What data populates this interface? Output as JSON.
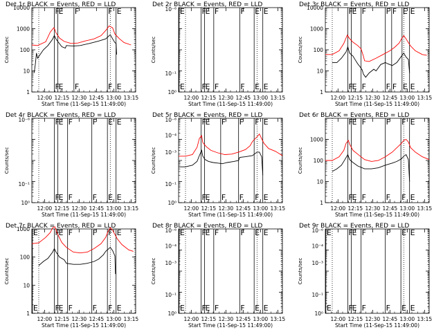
{
  "layout": "3x3 grid of detector light curves",
  "colors": {
    "events": "#000000",
    "lld": "#ff0000",
    "background": "#ffffff"
  },
  "chart_data": [
    {
      "type": "line",
      "title": "Det 1r BLACK = Events, RED = LLD",
      "xlabel": "Start Time (11-Sep-15 11:49:00)",
      "ylabel": "Counts/sec",
      "yscale": "log",
      "ylim_exp": [
        0,
        4
      ],
      "ytick_labels": [
        "1",
        "10",
        "100",
        "1000",
        "10000"
      ],
      "xticks": [
        "12:00",
        "12:15",
        "12:30",
        "12:45",
        "13:00",
        "13:15"
      ],
      "xlim_min": [
        0,
        90
      ],
      "has_data": true,
      "dotted_lines_min": [
        6,
        68,
        91
      ],
      "markers": [
        {
          "t": 19.5,
          "label": "F"
        },
        {
          "t": 22.5,
          "label": "E"
        },
        {
          "t": 36.5,
          "label": "F"
        },
        {
          "t": 65.5,
          "label": "F"
        },
        {
          "t": 73,
          "label": "E"
        }
      ],
      "series": [
        {
          "name": "LLD",
          "color": "red",
          "t": [
            0,
            5,
            12,
            16,
            19,
            20,
            21,
            24,
            28,
            34,
            40,
            46,
            54,
            60,
            64,
            67,
            70,
            72,
            76,
            80,
            86
          ],
          "val": [
            170,
            160,
            240,
            700,
            1100,
            900,
            630,
            360,
            250,
            200,
            210,
            260,
            330,
            470,
            820,
            1350,
            1100,
            560,
            330,
            220,
            170
          ]
        },
        {
          "name": "Events",
          "color": "black",
          "t": [
            2,
            3,
            4,
            5,
            10,
            14,
            18,
            19.5,
            21,
            23,
            26,
            29,
            30,
            36,
            42,
            50,
            58,
            64,
            68,
            70,
            72,
            73,
            73.5
          ],
          "val": [
            8,
            20,
            70,
            40,
            100,
            160,
            320,
            480,
            320,
            230,
            140,
            120,
            160,
            150,
            160,
            200,
            260,
            330,
            520,
            330,
            220,
            200,
            60
          ]
        }
      ]
    },
    {
      "type": "line",
      "title": "Det 2r BLACK = Events, RED = LLD",
      "xlabel": "Start Time (11-Sep-15 11:49:00)",
      "ylabel": "Counts/sec",
      "yscale": "log",
      "ylim_exp": [
        0,
        4
      ],
      "ytick_labels": [
        "10<sup>0</sup>",
        "10<sup>-1</sup>",
        "",
        "",
        "",
        "10<sup>-6</sup>"
      ],
      "ytick_text": [
        "10⁰",
        "10⁻¹",
        "",
        "",
        "",
        "10⁻⁶"
      ],
      "xticks": [
        "12:00",
        "12:15",
        "12:30",
        "12:45",
        "13:00",
        "13:15"
      ],
      "xlim_min": [
        0,
        90
      ],
      "has_data": false,
      "dotted_lines_min": [
        6,
        68,
        91
      ],
      "markers": [
        {
          "t": 0.5,
          "label": "E"
        },
        {
          "t": 19.5,
          "label": "F"
        },
        {
          "t": 22.5,
          "label": "E"
        },
        {
          "t": 30.5,
          "label": "F"
        },
        {
          "t": 53,
          "label": "F"
        },
        {
          "t": 65.5,
          "label": "E"
        },
        {
          "t": 73,
          "label": "E"
        }
      ],
      "series": []
    },
    {
      "type": "line",
      "title": "Det 3r BLACK = Events, RED = LLD",
      "xlabel": "Start Time (11-Sep-15 11:49:00)",
      "ylabel": "Counts/sec",
      "yscale": "log",
      "ylim_exp": [
        0,
        4
      ],
      "ytick_labels": [
        "1",
        "10",
        "100",
        "1000",
        "10000"
      ],
      "xticks": [
        "12:00",
        "12:15",
        "12:30",
        "12:45",
        "13:00",
        "13:15"
      ],
      "xlim_min": [
        0,
        90
      ],
      "has_data": true,
      "dotted_lines_min": [
        6,
        68,
        91
      ],
      "markers": [
        {
          "t": 19.5,
          "label": "F"
        },
        {
          "t": 22.5,
          "label": "E"
        },
        {
          "t": 31,
          "label": "F"
        },
        {
          "t": 52,
          "label": "F"
        },
        {
          "t": 57.5,
          "label": "F"
        },
        {
          "t": 66.5,
          "label": "E"
        },
        {
          "t": 73,
          "label": "E"
        }
      ],
      "series": [
        {
          "name": "LLD",
          "color": "red",
          "t": [
            0,
            6,
            12,
            16,
            19,
            21,
            24,
            28,
            31,
            33,
            34,
            38,
            44,
            50,
            56,
            60,
            64,
            66,
            68,
            70,
            72,
            74,
            78,
            84,
            88
          ],
          "val": [
            60,
            60,
            90,
            200,
            500,
            340,
            230,
            160,
            110,
            50,
            30,
            28,
            40,
            60,
            90,
            130,
            210,
            330,
            470,
            330,
            220,
            150,
            90,
            60,
            55
          ]
        },
        {
          "name": "Events",
          "color": "black",
          "t": [
            6,
            10,
            14,
            18,
            19.5,
            21,
            24,
            26,
            28,
            30,
            32,
            33,
            35,
            38,
            42,
            44,
            48,
            52,
            54,
            58,
            62,
            66,
            68,
            70,
            72,
            73
          ],
          "val": [
            25,
            25,
            40,
            80,
            140,
            70,
            50,
            33,
            22,
            16,
            11,
            7,
            5,
            8,
            12,
            10,
            20,
            25,
            22,
            18,
            25,
            50,
            70,
            45,
            35,
            8
          ]
        }
      ]
    },
    {
      "type": "line",
      "title": "Det 4r BLACK = Events, RED = LLD",
      "xlabel": "Start Time (11-Sep-15 11:49:00)",
      "ylabel": "Counts/sec",
      "yscale": "log",
      "ylim_exp": [
        0,
        4
      ],
      "ytick_text": [
        "10⁰",
        "10⁻¹",
        "",
        "",
        "",
        "10⁻⁶"
      ],
      "xticks": [
        "12:00",
        "12:15",
        "12:30",
        "12:45",
        "13:00",
        "13:15"
      ],
      "xlim_min": [
        0,
        90
      ],
      "has_data": false,
      "dotted_lines_min": [
        6,
        68,
        91
      ],
      "markers": [
        {
          "t": 19.5,
          "label": "F"
        },
        {
          "t": 22.5,
          "label": "E"
        },
        {
          "t": 31,
          "label": "F"
        },
        {
          "t": 52,
          "label": "F"
        },
        {
          "t": 65.5,
          "label": "E"
        },
        {
          "t": 73,
          "label": "E"
        }
      ],
      "series": []
    },
    {
      "type": "line",
      "title": "Det 5r BLACK = Events, RED = LLD",
      "xlabel": "Start Time (11-Sep-15 11:49:00)",
      "ylabel": "Counts/sec",
      "yscale": "log",
      "ylim_exp": [
        0,
        4
      ],
      "ytick_text": [
        "10⁰",
        "10⁻¹",
        "",
        "10⁻³",
        "10⁻⁴",
        "10⁻⁶"
      ],
      "xticks": [
        "12:00",
        "12:15",
        "12:30",
        "12:45",
        "13:00",
        "13:15"
      ],
      "xlim_min": [
        0,
        90
      ],
      "has_data": true,
      "dotted_lines_min": [
        6,
        68,
        91
      ],
      "markers": [
        {
          "t": 19.5,
          "label": "F"
        },
        {
          "t": 22.5,
          "label": "E"
        },
        {
          "t": 36.5,
          "label": "F"
        },
        {
          "t": 52,
          "label": "F"
        },
        {
          "t": 65.5,
          "label": "F"
        },
        {
          "t": 73,
          "label": "E"
        }
      ],
      "series": [
        {
          "name": "LLD",
          "color": "red",
          "t": [
            0,
            6,
            12,
            16,
            18,
            20,
            21,
            24,
            28,
            34,
            40,
            46,
            52,
            58,
            62,
            64,
            68,
            70,
            74,
            78,
            84,
            90
          ],
          "val": [
            160,
            160,
            190,
            420,
            1100,
            1500,
            700,
            450,
            300,
            230,
            190,
            200,
            250,
            330,
            500,
            790,
            1300,
            1800,
            650,
            370,
            270,
            170
          ]
        },
        {
          "name": "Events",
          "color": "black",
          "t": [
            0,
            6,
            12,
            16,
            18,
            20,
            21,
            23,
            26,
            30,
            34,
            38,
            42,
            48,
            52,
            53,
            58,
            64,
            68,
            70,
            72,
            73
          ],
          "val": [
            50,
            50,
            60,
            90,
            170,
            300,
            160,
            110,
            90,
            80,
            75,
            70,
            80,
            90,
            100,
            140,
            150,
            170,
            250,
            250,
            150,
            20
          ]
        }
      ]
    },
    {
      "type": "line",
      "title": "Det 6r BLACK = Events, RED = LLD",
      "xlabel": "Start Time (11-Sep-15 11:49:00)",
      "ylabel": "Counts/sec",
      "yscale": "log",
      "ylim_exp": [
        0,
        4
      ],
      "ytick_labels": [
        "1",
        "10",
        "100",
        "1000"
      ],
      "xticks": [
        "12:00",
        "12:15",
        "12:30",
        "12:45",
        "13:00",
        "13:15"
      ],
      "xlim_min": [
        0,
        90
      ],
      "has_data": true,
      "dotted_lines_min": [
        6,
        68,
        91
      ],
      "markers": [
        {
          "t": 19.5,
          "label": "F"
        },
        {
          "t": 22.5,
          "label": "E"
        },
        {
          "t": 31,
          "label": "F"
        },
        {
          "t": 52,
          "label": "F"
        },
        {
          "t": 65.5,
          "label": "F"
        },
        {
          "t": 73,
          "label": "E"
        }
      ],
      "series": [
        {
          "name": "LLD",
          "color": "red",
          "t": [
            0,
            6,
            12,
            16,
            18,
            20,
            21,
            24,
            28,
            34,
            40,
            46,
            52,
            58,
            62,
            66,
            68,
            70,
            72,
            74,
            78,
            84,
            90
          ],
          "val": [
            100,
            100,
            150,
            300,
            650,
            900,
            600,
            300,
            200,
            110,
            90,
            100,
            150,
            250,
            400,
            650,
            900,
            1000,
            750,
            400,
            250,
            150,
            110
          ]
        },
        {
          "name": "Events",
          "color": "black",
          "t": [
            6,
            10,
            14,
            17,
            19.5,
            21,
            24,
            28,
            34,
            40,
            46,
            52,
            58,
            62,
            66,
            68,
            70,
            72,
            73
          ],
          "val": [
            30,
            40,
            60,
            110,
            190,
            110,
            80,
            55,
            40,
            40,
            45,
            60,
            75,
            90,
            120,
            160,
            190,
            110,
            10
          ]
        }
      ]
    },
    {
      "type": "line",
      "title": "Det 7r BLACK = Events, RED = LLD",
      "xlabel": "Start Time (11-Sep-15 11:49:00)",
      "ylabel": "Counts/sec",
      "yscale": "log",
      "ylim_exp": [
        0,
        3
      ],
      "ytick_labels": [
        "1",
        "10",
        "100",
        "1000"
      ],
      "xticks": [
        "12:00",
        "12:15",
        "12:30",
        "12:45",
        "13:00",
        "13:15"
      ],
      "xlim_min": [
        0,
        90
      ],
      "has_data": true,
      "dotted_lines_min": [
        6,
        68,
        91
      ],
      "markers": [
        {
          "t": 0.5,
          "label": "E"
        },
        {
          "t": 19.5,
          "label": "F"
        },
        {
          "t": 22.5,
          "label": "E"
        },
        {
          "t": 31,
          "label": "F"
        },
        {
          "t": 52,
          "label": "F"
        },
        {
          "t": 65.5,
          "label": "F"
        },
        {
          "t": 73,
          "label": "E"
        }
      ],
      "series": [
        {
          "name": "LLD",
          "color": "red",
          "t": [
            0,
            6,
            12,
            16,
            18,
            20,
            22,
            26,
            30,
            36,
            42,
            48,
            54,
            60,
            64,
            66,
            68,
            70,
            74,
            78,
            84,
            88
          ],
          "val": [
            300,
            320,
            500,
            750,
            1100,
            1200,
            700,
            330,
            220,
            150,
            140,
            150,
            200,
            300,
            500,
            800,
            1100,
            900,
            450,
            280,
            180,
            160
          ]
        },
        {
          "name": "Events",
          "color": "black",
          "t": [
            6,
            10,
            14,
            18,
            19.5,
            21,
            24,
            28,
            30,
            36,
            42,
            48,
            54,
            58,
            62,
            64,
            68,
            70,
            72,
            72.5
          ],
          "val": [
            50,
            70,
            90,
            150,
            200,
            150,
            100,
            80,
            60,
            55,
            55,
            60,
            70,
            85,
            120,
            160,
            220,
            170,
            110,
            25
          ]
        }
      ]
    },
    {
      "type": "line",
      "title": "Det 8r BLACK = Events, RED = LLD",
      "xlabel": "Start Time (11-Sep-15 11:49:00)",
      "ylabel": "Counts/sec",
      "yscale": "log",
      "ylim_exp": [
        0,
        4
      ],
      "ytick_text": [
        "10⁰",
        "10⁻¹",
        "",
        "10⁻³",
        "10⁻⁴",
        "10⁻⁶"
      ],
      "xticks": [
        "12:00",
        "12:15",
        "12:30",
        "12:45",
        "13:00",
        "13:15"
      ],
      "xlim_min": [
        0,
        90
      ],
      "has_data": false,
      "dotted_lines_min": [
        6,
        68,
        91
      ],
      "markers": [
        {
          "t": 0.5,
          "label": "E"
        },
        {
          "t": 19.5,
          "label": "F"
        },
        {
          "t": 22.5,
          "label": "E"
        },
        {
          "t": 30.5,
          "label": "F"
        },
        {
          "t": 53,
          "label": "F"
        },
        {
          "t": 65.5,
          "label": "E"
        },
        {
          "t": 73,
          "label": "E"
        }
      ],
      "series": []
    },
    {
      "type": "line",
      "title": "Det 9r BLACK = Events, RED = LLD",
      "xlabel": "Start Time (11-Sep-15 11:49:00)",
      "ylabel": "Counts/sec",
      "yscale": "log",
      "ylim_exp": [
        0,
        4
      ],
      "ytick_text": [
        "10⁰",
        "10⁻¹",
        "",
        "10⁻³",
        "10⁻⁴",
        "10⁻⁶"
      ],
      "xticks": [
        "12:00",
        "12:15",
        "12:30",
        "12:45",
        "13:00",
        "13:15"
      ],
      "xlim_min": [
        0,
        90
      ],
      "has_data": false,
      "dotted_lines_min": [
        6,
        68,
        91
      ],
      "markers": [
        {
          "t": 0.5,
          "label": "E"
        },
        {
          "t": 19.5,
          "label": "F"
        },
        {
          "t": 22.5,
          "label": "E"
        },
        {
          "t": 31,
          "label": "F"
        },
        {
          "t": 52,
          "label": "F"
        },
        {
          "t": 65.5,
          "label": "E"
        },
        {
          "t": 73,
          "label": "E"
        }
      ],
      "series": []
    }
  ]
}
